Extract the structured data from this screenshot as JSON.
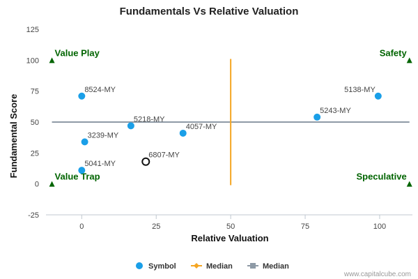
{
  "chart_data": {
    "type": "scatter",
    "title": "Fundamentals Vs Relative Valuation",
    "xlabel": "Relative Valuation",
    "ylabel": "Fundamental Score",
    "xlim": [
      -12,
      111
    ],
    "ylim": [
      -25,
      125
    ],
    "x_ticks": [
      0,
      25,
      50,
      75,
      100
    ],
    "y_ticks": [
      -25,
      0,
      25,
      50,
      75,
      100,
      125
    ],
    "grid": false,
    "points": [
      {
        "label": "8524-MY",
        "x": 0,
        "y": 71
      },
      {
        "label": "5218-MY",
        "x": 16.5,
        "y": 47
      },
      {
        "label": "4057-MY",
        "x": 34,
        "y": 41
      },
      {
        "label": "3239-MY",
        "x": 1,
        "y": 34
      },
      {
        "label": "5041-MY",
        "x": 0,
        "y": 11
      },
      {
        "label": "6807-MY",
        "x": 21.5,
        "y": 18,
        "highlight": true
      },
      {
        "label": "5138-MY",
        "x": 99.5,
        "y": 71
      },
      {
        "label": "5243-MY",
        "x": 79,
        "y": 54
      }
    ],
    "median_x": 50,
    "median_x_range": [
      -1,
      101
    ],
    "median_y": 50,
    "median_y_range": [
      -10,
      110
    ],
    "quadrants": [
      {
        "label": "Value Play",
        "x": -10,
        "y": 100,
        "position": "top-left"
      },
      {
        "label": "Safety",
        "x": 110,
        "y": 100,
        "position": "top-right"
      },
      {
        "label": "Value Trap",
        "x": -10,
        "y": 0,
        "position": "bottom-left"
      },
      {
        "label": "Speculative",
        "x": 110,
        "y": 0,
        "position": "bottom-right"
      }
    ],
    "legend": {
      "placement": "bottom",
      "items": [
        {
          "name": "Symbol",
          "marker": "circle"
        },
        {
          "name": "Median",
          "marker": "line-diamond"
        },
        {
          "name": "Median",
          "marker": "line-square"
        }
      ]
    },
    "colors": {
      "point": "#1a9fe8",
      "highlight_stroke": "#111111",
      "median_x": "#f5a623",
      "median_y": "#8e9aa6",
      "quadrant": "#006400"
    }
  },
  "credit": "www.capitalcube.com"
}
